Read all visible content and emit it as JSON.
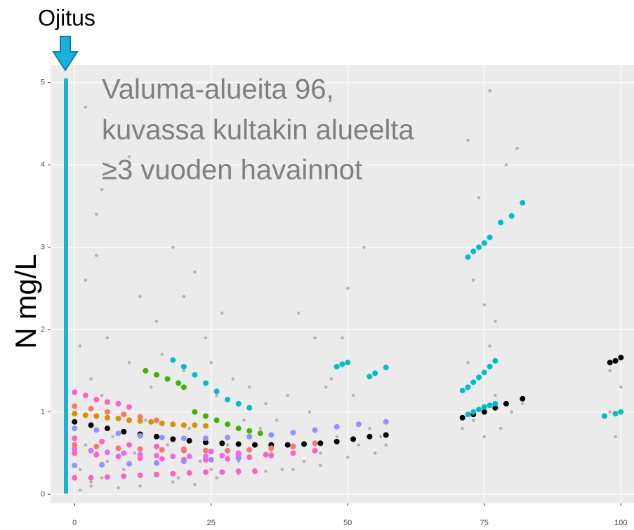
{
  "chart_data": {
    "type": "scatter",
    "header": "Ojitus",
    "annotation": [
      "Valuma-alueita 96,",
      "kuvassa kultakin alueelta",
      "≥3 vuoden havainnot"
    ],
    "y_label": "N mg/L",
    "xlim": [
      -4.4,
      102.4
    ],
    "ylim": [
      -0.11,
      5.21
    ],
    "xticks": [
      0,
      25,
      50,
      75,
      100
    ],
    "yticks": [
      0,
      1,
      2,
      3,
      4,
      5
    ],
    "grid": true,
    "series": [
      {
        "color": "#b3b3b3",
        "x": [
          1,
          1,
          2,
          2,
          3,
          3,
          4,
          4,
          5,
          5,
          6,
          6,
          7,
          8,
          9,
          10,
          11,
          12,
          13,
          14,
          15,
          16,
          17,
          18,
          19,
          20,
          21,
          22,
          23,
          24,
          25,
          26,
          27,
          28,
          29,
          30,
          31,
          32,
          33,
          34,
          35,
          36,
          37,
          38,
          39,
          40,
          41,
          42,
          43,
          44,
          45,
          46,
          47,
          48,
          49,
          50,
          51,
          52,
          53,
          54,
          55,
          56,
          57,
          71,
          72,
          72,
          73,
          73,
          74,
          74,
          75,
          75,
          76,
          76,
          77,
          77,
          78,
          79,
          80,
          81,
          82,
          98,
          98,
          99,
          100,
          1,
          3,
          5,
          8,
          12,
          18,
          22,
          26,
          30,
          35,
          40,
          45,
          50,
          55,
          15,
          20,
          25,
          2,
          4,
          6,
          10
        ],
        "values": [
          1.8,
          0.3,
          2.6,
          0.6,
          1.4,
          0.1,
          2.9,
          0.5,
          1.2,
          3.7,
          0.4,
          1.9,
          0.7,
          1.1,
          0.3,
          1.6,
          0.5,
          2.4,
          0.9,
          1.3,
          0.4,
          1.7,
          0.6,
          3.0,
          0.2,
          1.5,
          0.8,
          2.7,
          0.4,
          1.9,
          0.3,
          1.2,
          2.2,
          0.6,
          1.4,
          0.4,
          0.9,
          1.3,
          0.3,
          0.8,
          1.1,
          0.5,
          0.9,
          0.3,
          1.2,
          0.6,
          2.2,
          0.4,
          1.0,
          1.9,
          0.5,
          1.3,
          1.4,
          0.7,
          1.9,
          2.5,
          1.2,
          0.6,
          3.0,
          0.8,
          0.5,
          0.7,
          0.6,
          0.8,
          1.6,
          4.3,
          0.9,
          2.6,
          3.6,
          1.4,
          0.7,
          2.3,
          1.8,
          4.9,
          1.2,
          2.1,
          0.8,
          4.0,
          1.0,
          4.2,
          1.1,
          1.0,
          1.5,
          0.7,
          1.3,
          0.05,
          0.15,
          0.2,
          0.08,
          0.1,
          0.15,
          0.12,
          0.2,
          0.25,
          0.28,
          0.3,
          0.35,
          0.45,
          0.5,
          2.1,
          2.4,
          1.6,
          4.7,
          3.4,
          4.0,
          4.1
        ]
      },
      {
        "color": "#000000",
        "x": [
          0,
          3,
          6,
          9,
          12,
          15,
          18,
          21,
          24,
          27,
          30,
          33,
          36,
          39,
          42,
          45,
          48,
          51,
          54,
          57,
          71,
          73,
          75,
          77,
          79,
          82,
          98,
          99,
          100
        ],
        "values": [
          0.88,
          0.84,
          0.8,
          0.76,
          0.73,
          0.7,
          0.67,
          0.65,
          0.63,
          0.62,
          0.61,
          0.6,
          0.6,
          0.6,
          0.61,
          0.62,
          0.64,
          0.67,
          0.7,
          0.72,
          0.93,
          0.97,
          1.0,
          1.05,
          1.1,
          1.16,
          1.6,
          1.62,
          1.66
        ]
      },
      {
        "color": "#00bfc4",
        "x": [
          72,
          73,
          74,
          75,
          76,
          78,
          80,
          82,
          71,
          72,
          73,
          74,
          75,
          76,
          77,
          72,
          73,
          74,
          75,
          76,
          77,
          97,
          99,
          100,
          48,
          49,
          50,
          54,
          55,
          57,
          18,
          20,
          22,
          24,
          26,
          28,
          30,
          32
        ],
        "values": [
          2.88,
          2.95,
          3.0,
          3.05,
          3.12,
          3.3,
          3.38,
          3.54,
          1.26,
          1.3,
          1.36,
          1.42,
          1.48,
          1.55,
          1.62,
          0.97,
          1.0,
          1.03,
          1.06,
          1.08,
          1.1,
          0.95,
          0.98,
          1.0,
          1.55,
          1.58,
          1.6,
          1.43,
          1.47,
          1.54,
          1.63,
          1.55,
          1.45,
          1.35,
          1.25,
          1.15,
          1.1,
          1.05
        ]
      },
      {
        "color": "#ff61c3",
        "x": [
          0,
          2,
          4,
          6,
          8,
          10,
          0,
          3,
          6,
          9,
          12,
          15,
          18,
          21,
          24,
          27,
          30,
          33,
          0,
          5,
          10,
          15,
          20,
          25,
          30,
          35,
          0,
          4,
          8,
          12,
          16,
          20,
          24,
          28,
          32,
          36,
          40,
          44
        ],
        "values": [
          1.24,
          1.2,
          1.15,
          1.12,
          1.1,
          1.06,
          0.2,
          0.2,
          0.21,
          0.22,
          0.23,
          0.24,
          0.25,
          0.26,
          0.27,
          0.27,
          0.28,
          0.28,
          0.68,
          0.64,
          0.6,
          0.58,
          0.55,
          0.52,
          0.5,
          0.48,
          0.5,
          0.48,
          0.46,
          0.44,
          0.43,
          0.42,
          0.42,
          0.43,
          0.45,
          0.47,
          0.5,
          0.53
        ]
      },
      {
        "color": "#f8766d",
        "x": [
          0,
          3,
          6,
          9,
          12,
          15,
          0,
          4,
          8,
          12,
          16,
          20,
          24,
          28,
          32,
          36,
          40,
          44
        ],
        "values": [
          1.07,
          1.04,
          1.0,
          0.97,
          0.94,
          0.9,
          0.6,
          0.58,
          0.56,
          0.55,
          0.54,
          0.53,
          0.53,
          0.53,
          0.54,
          0.56,
          0.58,
          0.62
        ]
      },
      {
        "color": "#9590ff",
        "x": [
          0,
          4,
          8,
          12,
          16,
          20,
          24,
          28,
          32,
          36,
          40,
          44,
          48,
          52,
          57,
          0,
          5,
          10,
          15,
          20,
          25,
          30
        ],
        "values": [
          0.8,
          0.78,
          0.74,
          0.71,
          0.69,
          0.68,
          0.68,
          0.69,
          0.7,
          0.72,
          0.75,
          0.78,
          0.82,
          0.85,
          0.88,
          0.35,
          0.36,
          0.37,
          0.38,
          0.4,
          0.42,
          0.44
        ]
      },
      {
        "color": "#39b600",
        "x": [
          13,
          15,
          17,
          19,
          20,
          22,
          24,
          26,
          28,
          30,
          32,
          34
        ],
        "values": [
          1.5,
          1.45,
          1.4,
          1.35,
          1.3,
          1.0,
          0.95,
          0.9,
          0.85,
          0.8,
          0.77,
          0.74
        ]
      },
      {
        "color": "#d89000",
        "x": [
          0,
          2,
          4,
          6,
          8,
          10,
          12,
          14,
          16,
          18,
          20,
          22,
          24
        ],
        "values": [
          0.98,
          0.96,
          0.95,
          0.93,
          0.92,
          0.9,
          0.89,
          0.88,
          0.86,
          0.85,
          0.84,
          0.84,
          0.83
        ]
      },
      {
        "color": "#e76bf3",
        "x": [
          0,
          3,
          6,
          9,
          12,
          15,
          18,
          21,
          24,
          27,
          30
        ],
        "values": [
          0.55,
          0.53,
          0.51,
          0.5,
          0.48,
          0.47,
          0.46,
          0.46,
          0.46,
          0.47,
          0.48
        ]
      }
    ]
  }
}
